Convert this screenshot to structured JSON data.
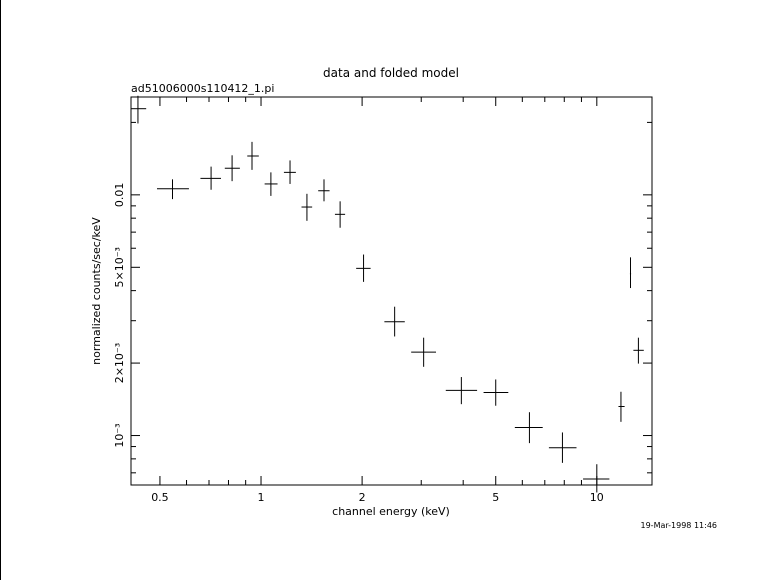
{
  "chart_data": {
    "type": "scatter",
    "title": "data and folded model",
    "subtitle": "ad51006000s110412_1.pi",
    "xlabel": "channel energy (keV)",
    "ylabel": "normalized counts/sec/keV",
    "xscale": "log",
    "yscale": "log",
    "xlim": [
      0.41,
      14.6
    ],
    "ylim": [
      0.000623,
      0.0255
    ],
    "x_ticks": [
      {
        "value": 0.5,
        "label": "0.5"
      },
      {
        "value": 1,
        "label": "1"
      },
      {
        "value": 2,
        "label": "2"
      },
      {
        "value": 5,
        "label": "5"
      },
      {
        "value": 10,
        "label": "10"
      }
    ],
    "y_ticks": [
      {
        "value": 0.01,
        "label": "0.01"
      },
      {
        "value": 0.005,
        "label": "5×10⁻³"
      },
      {
        "value": 0.002,
        "label": "2×10⁻³"
      },
      {
        "value": 0.001,
        "label": "10⁻³"
      }
    ],
    "series": [
      {
        "points": [
          {
            "x": 0.43,
            "xlo": 0.41,
            "xhi": 0.455,
            "y": 0.0228,
            "ylo": 0.0198,
            "yhi": 0.0258
          },
          {
            "x": 0.545,
            "xlo": 0.49,
            "xhi": 0.61,
            "y": 0.0106,
            "ylo": 0.0096,
            "yhi": 0.0116
          },
          {
            "x": 0.71,
            "xlo": 0.66,
            "xhi": 0.76,
            "y": 0.0117,
            "ylo": 0.0105,
            "yhi": 0.0131
          },
          {
            "x": 0.82,
            "xlo": 0.78,
            "xhi": 0.865,
            "y": 0.0129,
            "ylo": 0.0114,
            "yhi": 0.0146
          },
          {
            "x": 0.94,
            "xlo": 0.91,
            "xhi": 0.985,
            "y": 0.0145,
            "ylo": 0.0127,
            "yhi": 0.0166
          },
          {
            "x": 1.07,
            "xlo": 1.025,
            "xhi": 1.12,
            "y": 0.0111,
            "ylo": 0.0099,
            "yhi": 0.0124
          },
          {
            "x": 1.22,
            "xlo": 1.17,
            "xhi": 1.27,
            "y": 0.0124,
            "ylo": 0.0111,
            "yhi": 0.0139
          },
          {
            "x": 1.37,
            "xlo": 1.32,
            "xhi": 1.42,
            "y": 0.0089,
            "ylo": 0.0078,
            "yhi": 0.0101
          },
          {
            "x": 1.54,
            "xlo": 1.48,
            "xhi": 1.6,
            "y": 0.0104,
            "ylo": 0.0094,
            "yhi": 0.0116
          },
          {
            "x": 1.72,
            "xlo": 1.66,
            "xhi": 1.78,
            "y": 0.0083,
            "ylo": 0.0073,
            "yhi": 0.0094
          },
          {
            "x": 2.02,
            "xlo": 1.92,
            "xhi": 2.12,
            "y": 0.00495,
            "ylo": 0.00435,
            "yhi": 0.00565
          },
          {
            "x": 2.5,
            "xlo": 2.33,
            "xhi": 2.68,
            "y": 0.00297,
            "ylo": 0.00258,
            "yhi": 0.00343
          },
          {
            "x": 3.05,
            "xlo": 2.8,
            "xhi": 3.32,
            "y": 0.00222,
            "ylo": 0.00193,
            "yhi": 0.00255
          },
          {
            "x": 3.95,
            "xlo": 3.55,
            "xhi": 4.4,
            "y": 0.00154,
            "ylo": 0.00135,
            "yhi": 0.00175
          },
          {
            "x": 5.0,
            "xlo": 4.6,
            "xhi": 5.45,
            "y": 0.00151,
            "ylo": 0.00133,
            "yhi": 0.00171
          },
          {
            "x": 6.3,
            "xlo": 5.7,
            "xhi": 6.9,
            "y": 0.00108,
            "ylo": 0.00093,
            "yhi": 0.00125
          },
          {
            "x": 7.9,
            "xlo": 7.2,
            "xhi": 8.7,
            "y": 0.00089,
            "ylo": 0.00077,
            "yhi": 0.00103
          },
          {
            "x": 10.0,
            "xlo": 9.1,
            "xhi": 10.9,
            "y": 0.00066,
            "ylo": 0.00058,
            "yhi": 0.00076
          },
          {
            "x": 11.8,
            "xlo": 11.6,
            "xhi": 12.1,
            "y": 0.00132,
            "ylo": 0.00114,
            "yhi": 0.00152
          },
          {
            "x": 12.6,
            "xlo": 12.55,
            "xhi": 12.65,
            "y": 0.0047,
            "ylo": 0.0041,
            "yhi": 0.0055
          },
          {
            "x": 13.3,
            "xlo": 12.85,
            "xhi": 13.8,
            "y": 0.00226,
            "ylo": 0.00199,
            "yhi": 0.00255
          }
        ]
      }
    ]
  },
  "footer": {
    "timestamp": "19-Mar-1998 11:46"
  }
}
